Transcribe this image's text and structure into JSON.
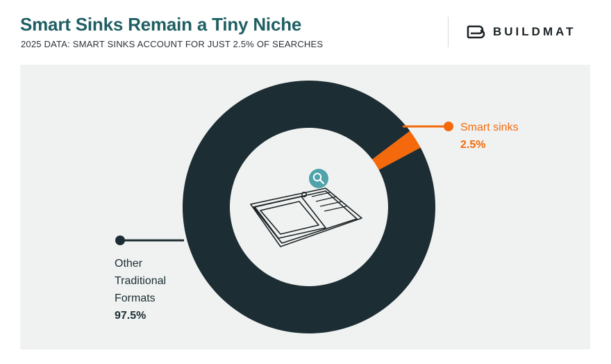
{
  "header": {
    "title": "Smart Sinks Remain a Tiny Niche",
    "subtitle": "2025 DATA: SMART SINKS ACCOUNT FOR JUST 2.5% OF SEARCHES"
  },
  "brand": {
    "name": "BUILDMAT",
    "logo_icon": "buildmat-logo-icon"
  },
  "colors": {
    "title": "#1f5f63",
    "dark": "#1c2d33",
    "accent": "#f4690b",
    "panel": "#f0f2f1",
    "icon_badge": "#4fa3ab"
  },
  "chart_data": {
    "type": "pie",
    "style": "donut",
    "center_icon": "sink-search-icon",
    "slices": [
      {
        "label": "Smart sinks",
        "value_text": "2.5%",
        "value": 2.5,
        "color": "#f4690b"
      },
      {
        "label": "Other Traditional Formats",
        "label_lines": [
          "Other",
          "Traditional",
          "Formats"
        ],
        "value_text": "97.5%",
        "value": 97.5,
        "color": "#1c2d33"
      }
    ]
  }
}
